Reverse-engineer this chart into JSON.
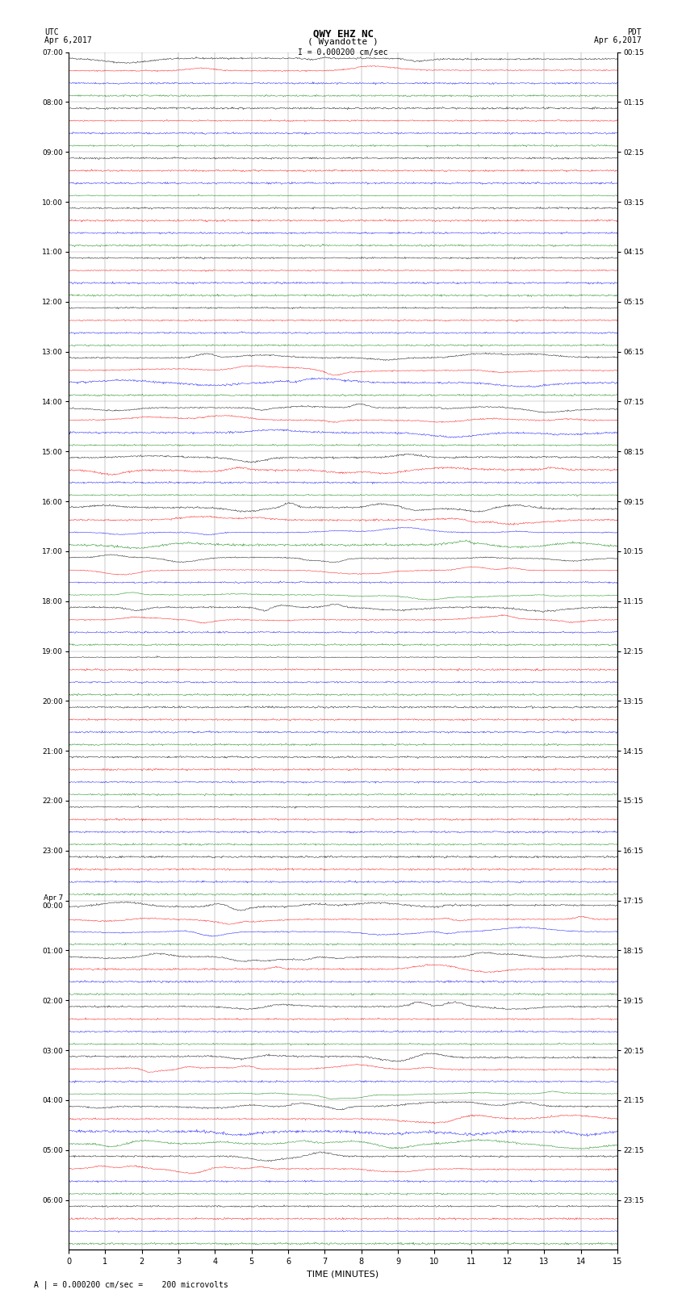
{
  "title_line1": "QWY EHZ NC",
  "title_line2": "( Wyandotte )",
  "scale_bar": "I = 0.000200 cm/sec",
  "label_utc": "UTC",
  "label_pdt": "PDT",
  "date_left": "Apr 6,2017",
  "date_right": "Apr 6,2017",
  "xlabel": "TIME (MINUTES)",
  "footer": "A | = 0.000200 cm/sec =    200 microvolts",
  "utc_labels": [
    "07:00",
    "08:00",
    "09:00",
    "10:00",
    "11:00",
    "12:00",
    "13:00",
    "14:00",
    "15:00",
    "16:00",
    "17:00",
    "18:00",
    "19:00",
    "20:00",
    "21:00",
    "22:00",
    "23:00",
    "Apr 7\n00:00",
    "01:00",
    "02:00",
    "03:00",
    "04:00",
    "05:00",
    "06:00"
  ],
  "pdt_labels": [
    "00:15",
    "01:15",
    "02:15",
    "03:15",
    "04:15",
    "05:15",
    "06:15",
    "07:15",
    "08:15",
    "09:15",
    "10:15",
    "11:15",
    "12:15",
    "13:15",
    "14:15",
    "15:15",
    "16:15",
    "17:15",
    "18:15",
    "19:15",
    "20:15",
    "21:15",
    "22:15",
    "23:15"
  ],
  "num_rows": 24,
  "traces_per_row": 4,
  "trace_colors": [
    "black",
    "red",
    "blue",
    "green"
  ],
  "bg_color": "white",
  "plot_bg": "white",
  "minutes": 15,
  "seed": 42
}
